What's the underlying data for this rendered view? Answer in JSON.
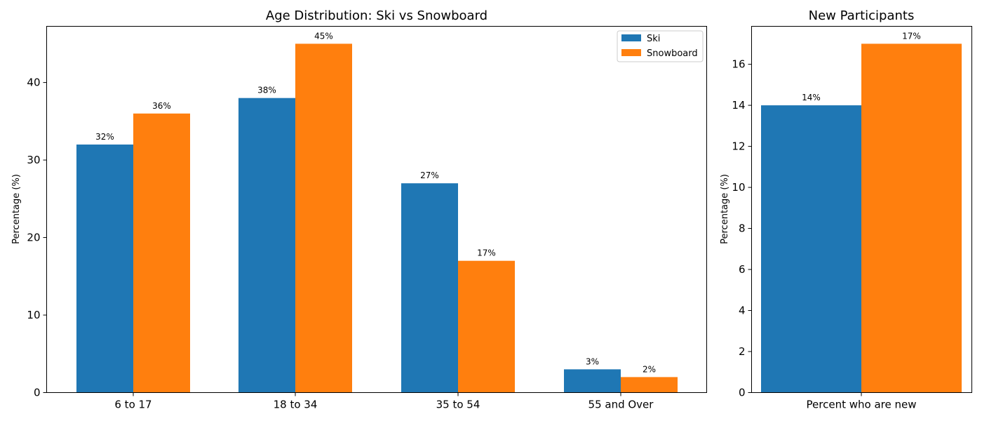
{
  "colors": {
    "ski": "#1f77b4",
    "snowboard": "#ff7f0e"
  },
  "chart_data": [
    {
      "type": "bar",
      "title": "Age Distribution: Ski vs Snowboard",
      "xlabel": "",
      "ylabel": "Percentage (%)",
      "ylim": [
        0,
        47.25
      ],
      "yticks": [
        0,
        10,
        20,
        30,
        40
      ],
      "categories": [
        "6 to 17",
        "18 to 34",
        "35 to 54",
        "55 and Over"
      ],
      "series": [
        {
          "name": "Ski",
          "values": [
            32,
            38,
            27,
            3
          ],
          "labels": [
            "32%",
            "38%",
            "27%",
            "3%"
          ]
        },
        {
          "name": "Snowboard",
          "values": [
            36,
            45,
            17,
            2
          ],
          "labels": [
            "36%",
            "45%",
            "17%",
            "2%"
          ]
        }
      ],
      "legend": "top-right"
    },
    {
      "type": "bar",
      "title": "New Participants",
      "xlabel": "",
      "ylabel": "Percentage (%)",
      "ylim": [
        0,
        17.85
      ],
      "yticks": [
        0,
        2,
        4,
        6,
        8,
        10,
        12,
        14,
        16
      ],
      "categories": [
        "Percent who are new"
      ],
      "series": [
        {
          "name": "Ski",
          "values": [
            14
          ],
          "labels": [
            "14%"
          ]
        },
        {
          "name": "Snowboard",
          "values": [
            17
          ],
          "labels": [
            "17%"
          ]
        }
      ]
    }
  ]
}
